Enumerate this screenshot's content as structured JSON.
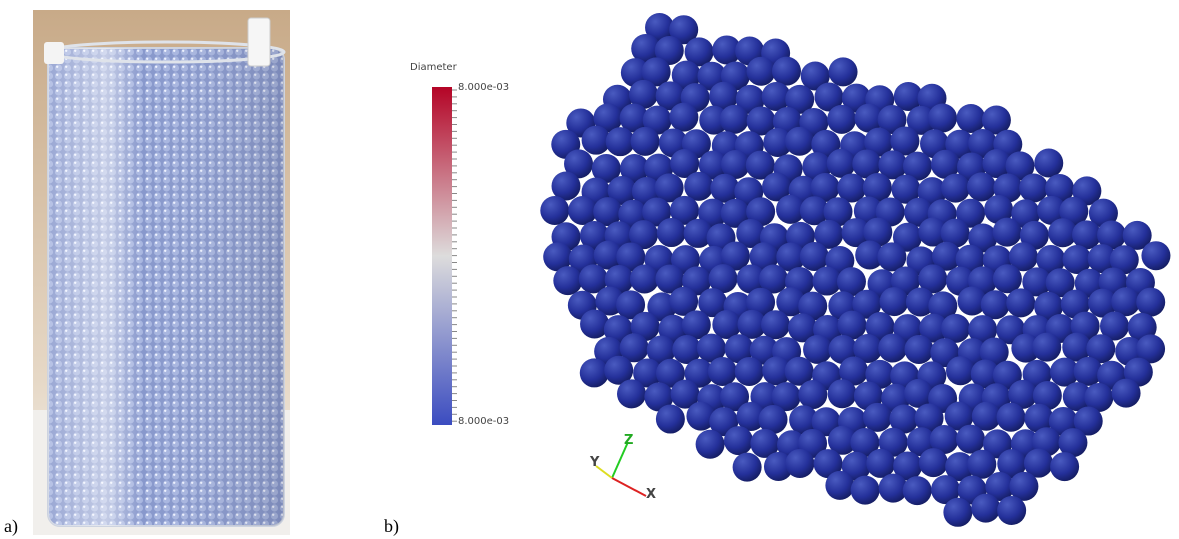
{
  "panels": [
    {
      "label": "a)"
    },
    {
      "label": "b)",
      "colorbar": {
        "title": "Diameter",
        "top_label": "8.000e-03",
        "bottom_label": "8.000e-03"
      },
      "axes": {
        "z": "Z",
        "y": "Y",
        "x": "X"
      }
    }
  ]
}
